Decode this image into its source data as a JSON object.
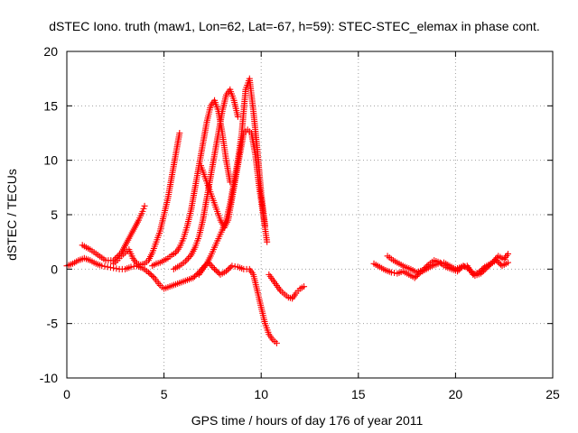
{
  "chart_data": {
    "type": "scatter",
    "title": "dSTEC Iono. truth (maw1, Lon=62, Lat=-67, h=59): STEC-STEC_elemax in phase cont.",
    "xlabel": "GPS time / hours of day 176 of year 2011",
    "ylabel": "dSTEC  / TECUs",
    "xlim": [
      0,
      25
    ],
    "ylim": [
      -10,
      20
    ],
    "xticks": [
      0,
      5,
      10,
      15,
      20,
      25
    ],
    "yticks": [
      -10,
      -5,
      0,
      5,
      10,
      15,
      20
    ],
    "grid": true,
    "marker": "+",
    "color": "#ff0000",
    "series": [
      {
        "x": [
          0.0,
          0.3,
          0.6,
          0.9,
          1.2,
          1.5,
          1.8,
          2.1,
          2.4,
          2.7,
          3.0,
          3.3,
          3.6,
          3.9,
          4.2,
          4.5,
          4.8,
          5.0,
          5.3,
          5.6,
          5.9,
          6.2,
          6.5,
          6.8,
          7.1,
          7.3,
          7.6,
          7.9,
          8.2,
          8.5,
          8.8,
          9.1,
          9.4,
          9.6,
          9.8,
          10.0,
          10.2,
          10.4,
          10.6,
          10.8
        ],
        "y": [
          0.3,
          0.5,
          0.8,
          1.0,
          0.8,
          0.5,
          0.3,
          0.2,
          0.1,
          0.0,
          0.0,
          0.2,
          0.3,
          0.1,
          -0.3,
          -0.8,
          -1.5,
          -1.8,
          -1.6,
          -1.4,
          -1.2,
          -1.0,
          -0.8,
          -0.3,
          0.3,
          0.6,
          0.0,
          -0.5,
          -0.2,
          0.3,
          0.2,
          0.0,
          0.0,
          -0.5,
          -2.0,
          -3.5,
          -5.0,
          -6.0,
          -6.5,
          -6.8
        ]
      },
      {
        "x": [
          0.8,
          1.2,
          1.6,
          2.0,
          2.4,
          2.8,
          3.1,
          3.4,
          3.7,
          3.9,
          4.0
        ],
        "y": [
          2.2,
          1.8,
          1.3,
          0.8,
          0.8,
          1.5,
          2.5,
          3.5,
          4.5,
          5.3,
          5.8
        ]
      },
      {
        "x": [
          2.4,
          2.6,
          2.8,
          3.0,
          3.2,
          3.4,
          3.6,
          3.8,
          4.0,
          4.2,
          4.4,
          4.6,
          4.8,
          5.0,
          5.2,
          5.4,
          5.6,
          5.8
        ],
        "y": [
          0.5,
          0.8,
          1.2,
          1.5,
          1.8,
          1.0,
          0.5,
          0.4,
          0.5,
          0.8,
          1.5,
          2.5,
          3.5,
          5.0,
          6.5,
          8.5,
          10.5,
          12.5
        ]
      },
      {
        "x": [
          4.4,
          4.6,
          4.8,
          5.0,
          5.2,
          5.4,
          5.6,
          5.8,
          6.0,
          6.2,
          6.4,
          6.6,
          6.8,
          7.0,
          7.2,
          7.4,
          7.6,
          7.8,
          8.0,
          8.2,
          8.4
        ],
        "y": [
          0.3,
          0.5,
          0.6,
          0.8,
          1.0,
          1.3,
          1.5,
          2.0,
          2.8,
          4.0,
          5.5,
          7.5,
          9.5,
          11.5,
          13.5,
          15.0,
          15.5,
          14.5,
          12.5,
          10.0,
          8.0
        ]
      },
      {
        "x": [
          5.5,
          5.8,
          6.1,
          6.4,
          6.6,
          6.8,
          7.0,
          7.2,
          7.4,
          7.6,
          7.8,
          8.0,
          8.2,
          8.4,
          8.6,
          8.8
        ],
        "y": [
          0.0,
          0.3,
          0.7,
          1.3,
          2.0,
          3.0,
          4.5,
          6.5,
          8.5,
          10.5,
          12.5,
          14.5,
          16.0,
          16.5,
          15.5,
          14.0
        ]
      },
      {
        "x": [
          6.8,
          7.0,
          7.2,
          7.4,
          7.6,
          7.8,
          8.0,
          8.2,
          8.4,
          8.6,
          8.8,
          9.0,
          9.2,
          9.4,
          9.6,
          9.8,
          10.0,
          10.2
        ],
        "y": [
          -0.5,
          0.0,
          0.5,
          1.2,
          2.0,
          2.8,
          3.6,
          4.5,
          6.0,
          8.0,
          10.0,
          12.5,
          16.5,
          17.5,
          14.5,
          11.0,
          7.0,
          4.0
        ]
      },
      {
        "x": [
          6.9,
          7.1,
          7.3,
          7.5,
          7.7,
          7.9,
          8.1,
          8.3,
          8.5,
          8.7,
          8.9,
          9.1,
          9.3,
          9.5,
          9.7,
          9.9,
          10.1,
          10.3
        ],
        "y": [
          9.5,
          8.5,
          7.5,
          6.5,
          5.5,
          4.5,
          3.8,
          4.5,
          6.5,
          8.5,
          10.5,
          12.5,
          12.8,
          12.5,
          10.5,
          7.5,
          5.0,
          2.5
        ]
      },
      {
        "x": [
          10.4,
          10.6,
          10.8,
          11.0,
          11.2,
          11.4,
          11.6,
          11.8,
          12.0,
          12.2
        ],
        "y": [
          -0.5,
          -1.0,
          -1.5,
          -2.0,
          -2.3,
          -2.6,
          -2.7,
          -2.2,
          -1.8,
          -1.6
        ]
      },
      {
        "x": [
          15.8,
          16.1,
          16.4,
          16.7,
          17.0,
          17.3,
          17.6,
          17.9,
          18.2,
          18.5,
          18.8,
          19.1,
          19.4,
          19.7,
          20.0,
          20.3,
          20.6,
          20.9,
          21.2,
          21.5,
          21.8,
          22.1,
          22.4,
          22.7
        ],
        "y": [
          0.5,
          0.2,
          -0.1,
          -0.3,
          -0.4,
          -0.2,
          -0.5,
          -0.8,
          -0.3,
          0.0,
          0.3,
          0.5,
          0.6,
          0.3,
          0.0,
          0.2,
          0.3,
          -0.5,
          -0.3,
          0.2,
          0.5,
          0.8,
          0.3,
          0.6
        ]
      },
      {
        "x": [
          16.5,
          16.8,
          17.1,
          17.4,
          17.7,
          18.0,
          18.3,
          18.6,
          18.9,
          19.2,
          19.5,
          19.8,
          20.1,
          20.4,
          20.7,
          21.0,
          21.3,
          21.6,
          21.9,
          22.2,
          22.5,
          22.7
        ],
        "y": [
          1.2,
          0.8,
          0.5,
          0.2,
          0.0,
          -0.3,
          -0.1,
          0.4,
          0.8,
          0.6,
          0.2,
          0.0,
          -0.2,
          0.3,
          0.0,
          -0.6,
          -0.4,
          0.1,
          0.6,
          1.2,
          0.9,
          1.4
        ]
      }
    ]
  }
}
